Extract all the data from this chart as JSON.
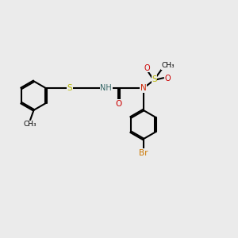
{
  "bg_color": "#ebebeb",
  "bond_color": "#000000",
  "bond_width": 1.5,
  "atom_colors": {
    "S_thioether": "#b8b800",
    "S_sulfonyl": "#b8b800",
    "N_amide": "#0000cc",
    "N_sulfonamide": "#cc2200",
    "O": "#cc0000",
    "Br": "#cc7700",
    "H": "#336666",
    "C": "#000000"
  },
  "figsize": [
    3.0,
    3.0
  ],
  "dpi": 100,
  "xlim": [
    0,
    10
  ],
  "ylim": [
    0,
    10
  ]
}
